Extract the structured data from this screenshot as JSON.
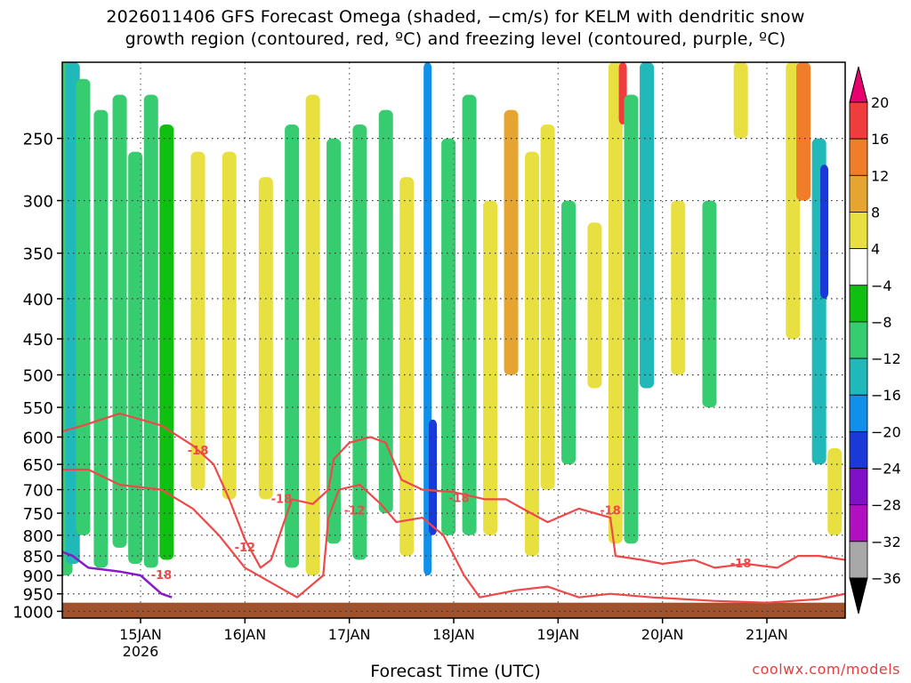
{
  "page": {
    "title_line1": "2026011406 GFS Forecast Omega (shaded, −cm/s) for KELM with dendritic snow",
    "title_line2": "growth region (contoured, red, ºC) and freezing level (contoured, purple, ºC)",
    "credit": "coolwx.com/models"
  },
  "chart_data": {
    "type": "heatmap",
    "title": "2026011406 GFS Forecast Omega (shaded, −cm/s) for KELM with dendritic snow growth region (contoured, red, ºC) and freezing level (contoured, purple, ºC)",
    "xlabel": "Forecast Time (UTC)",
    "ylabel": "",
    "x_ticks": [
      {
        "label": "15JAN",
        "sublabel": "2026",
        "day": 1.0
      },
      {
        "label": "16JAN",
        "day": 2.0
      },
      {
        "label": "17JAN",
        "day": 3.0
      },
      {
        "label": "18JAN",
        "day": 4.0
      },
      {
        "label": "19JAN",
        "day": 5.0
      },
      {
        "label": "20JAN",
        "day": 6.0
      },
      {
        "label": "21JAN",
        "day": 7.0
      }
    ],
    "xlim_days_from_15JAN_minus1": [
      0.25,
      7.75
    ],
    "y_ticks": [
      250,
      300,
      350,
      400,
      450,
      500,
      550,
      600,
      650,
      700,
      750,
      800,
      850,
      900,
      950,
      1000
    ],
    "ylim_hpa": [
      200,
      1020
    ],
    "y_scale": "log-pressure",
    "grid": true,
    "colorbar": {
      "labels": [
        "20",
        "16",
        "12",
        "8",
        "4",
        "−4",
        "−8",
        "−12",
        "−16",
        "−20",
        "−24",
        "−28",
        "−32",
        "−36"
      ],
      "colors": [
        "#e8006e",
        "#ef3d3d",
        "#f07d2a",
        "#e6a531",
        "#e8e041",
        "#ffffff",
        "#10c010",
        "#38cc70",
        "#20b8b8",
        "#1090e8",
        "#1a3ad8",
        "#8010c8",
        "#b010c0",
        "#a8a8a8"
      ]
    },
    "contour_labels": [
      "-18",
      "-18",
      "-12",
      "-18",
      "-12",
      "-18",
      "-18",
      "-18"
    ],
    "series": [
      {
        "name": "dendritic snow growth region",
        "color": "#f04848"
      },
      {
        "name": "freezing level",
        "color": "#8a1ac8"
      }
    ],
    "omega_columns": [
      {
        "day": 0.28,
        "top": 200,
        "bottom": 900,
        "value": -10
      },
      {
        "day": 0.35,
        "top": 200,
        "bottom": 870,
        "value": -14
      },
      {
        "day": 0.45,
        "top": 210,
        "bottom": 800,
        "value": -9
      },
      {
        "day": 0.62,
        "top": 230,
        "bottom": 880,
        "value": -8
      },
      {
        "day": 0.8,
        "top": 220,
        "bottom": 830,
        "value": -9
      },
      {
        "day": 0.95,
        "top": 260,
        "bottom": 870,
        "value": -10
      },
      {
        "day": 1.1,
        "top": 220,
        "bottom": 880,
        "value": -8
      },
      {
        "day": 1.25,
        "top": 240,
        "bottom": 860,
        "value": -7
      },
      {
        "day": 1.55,
        "top": 260,
        "bottom": 700,
        "value": 6
      },
      {
        "day": 1.85,
        "top": 260,
        "bottom": 720,
        "value": 5
      },
      {
        "day": 2.2,
        "top": 280,
        "bottom": 720,
        "value": 5
      },
      {
        "day": 2.45,
        "top": 240,
        "bottom": 880,
        "value": -8
      },
      {
        "day": 2.65,
        "top": 220,
        "bottom": 900,
        "value": 5
      },
      {
        "day": 2.85,
        "top": 250,
        "bottom": 820,
        "value": -9
      },
      {
        "day": 3.1,
        "top": 240,
        "bottom": 860,
        "value": -8
      },
      {
        "day": 3.35,
        "top": 230,
        "bottom": 750,
        "value": -10
      },
      {
        "day": 3.55,
        "top": 280,
        "bottom": 850,
        "value": 6
      },
      {
        "day": 3.75,
        "top": 200,
        "bottom": 900,
        "value": -16
      },
      {
        "day": 3.8,
        "top": 570,
        "bottom": 800,
        "value": -22
      },
      {
        "day": 3.95,
        "top": 250,
        "bottom": 800,
        "value": -9
      },
      {
        "day": 4.15,
        "top": 220,
        "bottom": 800,
        "value": -8
      },
      {
        "day": 4.35,
        "top": 300,
        "bottom": 800,
        "value": 6
      },
      {
        "day": 4.55,
        "top": 230,
        "bottom": 500,
        "value": 10
      },
      {
        "day": 4.75,
        "top": 260,
        "bottom": 850,
        "value": 7
      },
      {
        "day": 4.9,
        "top": 240,
        "bottom": 700,
        "value": 5
      },
      {
        "day": 5.1,
        "top": 300,
        "bottom": 650,
        "value": -9
      },
      {
        "day": 5.35,
        "top": 320,
        "bottom": 520,
        "value": 5
      },
      {
        "day": 5.55,
        "top": 200,
        "bottom": 820,
        "value": 6
      },
      {
        "day": 5.62,
        "top": 200,
        "bottom": 240,
        "value": 18
      },
      {
        "day": 5.7,
        "top": 220,
        "bottom": 820,
        "value": -8
      },
      {
        "day": 5.85,
        "top": 200,
        "bottom": 520,
        "value": -14
      },
      {
        "day": 6.15,
        "top": 300,
        "bottom": 500,
        "value": 5
      },
      {
        "day": 6.45,
        "top": 300,
        "bottom": 550,
        "value": -9
      },
      {
        "day": 6.75,
        "top": 200,
        "bottom": 250,
        "value": 6
      },
      {
        "day": 7.25,
        "top": 200,
        "bottom": 450,
        "value": 6
      },
      {
        "day": 7.35,
        "top": 200,
        "bottom": 300,
        "value": 12
      },
      {
        "day": 7.5,
        "top": 250,
        "bottom": 650,
        "value": -12
      },
      {
        "day": 7.55,
        "top": 270,
        "bottom": 400,
        "value": -22
      },
      {
        "day": 7.65,
        "top": 620,
        "bottom": 800,
        "value": 6
      }
    ],
    "dgz_upper": [
      [
        0.25,
        590
      ],
      [
        0.45,
        580
      ],
      [
        0.8,
        560
      ],
      [
        1.2,
        580
      ],
      [
        1.5,
        615
      ],
      [
        1.7,
        650
      ],
      [
        1.85,
        720
      ],
      [
        2.0,
        810
      ],
      [
        2.15,
        880
      ],
      [
        2.25,
        860
      ],
      [
        2.45,
        720
      ],
      [
        2.65,
        730
      ],
      [
        2.8,
        700
      ],
      [
        2.85,
        640
      ],
      [
        3.0,
        610
      ],
      [
        3.2,
        600
      ],
      [
        3.35,
        610
      ],
      [
        3.5,
        680
      ],
      [
        3.7,
        700
      ],
      [
        4.0,
        705
      ],
      [
        4.3,
        720
      ],
      [
        4.5,
        720
      ],
      [
        4.7,
        745
      ],
      [
        4.9,
        770
      ],
      [
        5.2,
        740
      ],
      [
        5.5,
        760
      ],
      [
        5.55,
        850
      ],
      [
        5.8,
        860
      ],
      [
        6.0,
        870
      ],
      [
        6.3,
        860
      ],
      [
        6.5,
        880
      ],
      [
        6.8,
        870
      ],
      [
        7.1,
        880
      ],
      [
        7.3,
        850
      ],
      [
        7.5,
        850
      ],
      [
        7.75,
        860
      ]
    ],
    "dgz_lower": [
      [
        0.25,
        660
      ],
      [
        0.5,
        660
      ],
      [
        0.8,
        690
      ],
      [
        1.2,
        700
      ],
      [
        1.5,
        740
      ],
      [
        1.75,
        800
      ],
      [
        2.0,
        880
      ],
      [
        2.5,
        960
      ],
      [
        2.75,
        900
      ],
      [
        2.8,
        760
      ],
      [
        2.9,
        700
      ],
      [
        3.1,
        690
      ],
      [
        3.3,
        730
      ],
      [
        3.45,
        770
      ],
      [
        3.7,
        760
      ],
      [
        3.9,
        800
      ],
      [
        4.1,
        900
      ],
      [
        4.25,
        960
      ],
      [
        4.6,
        940
      ],
      [
        4.9,
        930
      ],
      [
        5.2,
        960
      ],
      [
        5.5,
        950
      ],
      [
        5.9,
        960
      ],
      [
        6.5,
        970
      ],
      [
        7.0,
        975
      ],
      [
        7.5,
        965
      ],
      [
        7.75,
        950
      ]
    ],
    "freezing_level": [
      [
        0.25,
        840
      ],
      [
        0.35,
        850
      ],
      [
        0.5,
        880
      ],
      [
        0.8,
        890
      ],
      [
        1.0,
        900
      ],
      [
        1.2,
        950
      ],
      [
        1.3,
        960
      ]
    ]
  }
}
